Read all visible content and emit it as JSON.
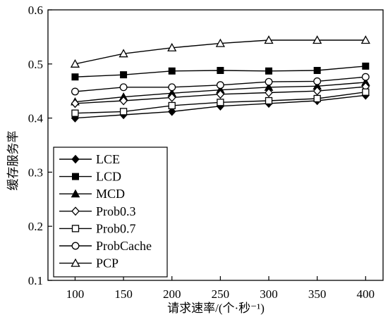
{
  "chart_data": {
    "type": "line",
    "xlabel": "请求速率/(个·秒⁻¹)",
    "ylabel": "缓存服务率",
    "xlim": [
      72,
      418
    ],
    "ylim": [
      0.1,
      0.6
    ],
    "xtick_labels": [
      "100",
      "150",
      "200",
      "250",
      "300",
      "350",
      "400"
    ],
    "ytick_labels": [
      "0.1",
      "0.2",
      "0.3",
      "0.4",
      "0.5",
      "0.6"
    ],
    "grid": false,
    "legend": "lower-left",
    "line_color": "#000000",
    "x": [
      100,
      150,
      200,
      250,
      300,
      350,
      400
    ],
    "series": [
      {
        "name": "LCE",
        "marker": "diamond-filled",
        "values": [
          0.4,
          0.406,
          0.412,
          0.422,
          0.427,
          0.432,
          0.442
        ]
      },
      {
        "name": "LCD",
        "marker": "square-filled",
        "values": [
          0.476,
          0.48,
          0.487,
          0.488,
          0.487,
          0.488,
          0.496
        ]
      },
      {
        "name": "MCD",
        "marker": "triangle-filled",
        "values": [
          0.43,
          0.439,
          0.446,
          0.452,
          0.457,
          0.459,
          0.466
        ]
      },
      {
        "name": "Prob0.3",
        "marker": "diamond-open",
        "values": [
          0.427,
          0.432,
          0.438,
          0.444,
          0.447,
          0.45,
          0.458
        ]
      },
      {
        "name": "Prob0.7",
        "marker": "square-open",
        "values": [
          0.409,
          0.412,
          0.423,
          0.429,
          0.432,
          0.436,
          0.448
        ]
      },
      {
        "name": "ProbCache",
        "marker": "circle-open",
        "values": [
          0.449,
          0.457,
          0.457,
          0.461,
          0.467,
          0.468,
          0.476
        ]
      },
      {
        "name": "PCP",
        "marker": "triangle-open",
        "values": [
          0.5,
          0.519,
          0.53,
          0.538,
          0.544,
          0.544,
          0.544
        ]
      }
    ]
  }
}
